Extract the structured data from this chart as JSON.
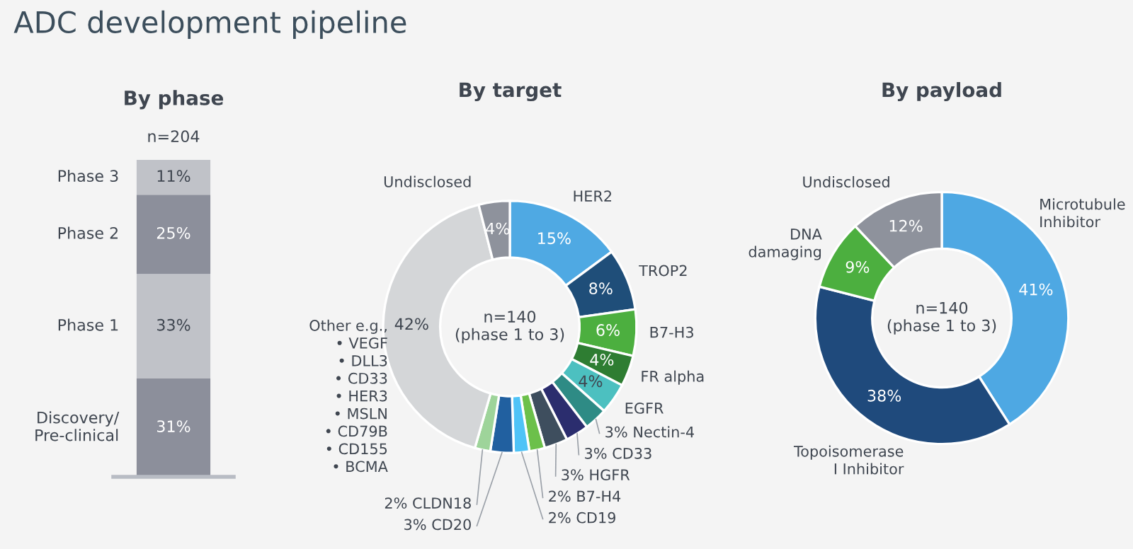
{
  "chart_data": [
    {
      "type": "bar",
      "stacked": true,
      "title": "ADC development pipeline",
      "subtitle": "By phase",
      "categories": [
        null
      ],
      "ylim": [
        0,
        100
      ],
      "tick_labels": false,
      "annotations": [
        "n=204"
      ],
      "series": [
        {
          "name": "Discovery/\nPre-clinical",
          "color": "#8c8f9b",
          "values": [
            31
          ],
          "value_labels": [
            "31%"
          ]
        },
        {
          "name": "Phase 1",
          "color": "#c0c2c8",
          "values": [
            33
          ],
          "value_labels": [
            "33%"
          ]
        },
        {
          "name": "Phase 2",
          "color": "#8c8f9b",
          "values": [
            25
          ],
          "value_labels": [
            "25%"
          ]
        },
        {
          "name": "Phase 3",
          "color": "#c0c2c8",
          "values": [
            11
          ],
          "value_labels": [
            "11%"
          ]
        }
      ]
    },
    {
      "type": "donut",
      "title": "By target",
      "annotations": [
        "n=140\n(phase 1 to 3)"
      ],
      "categories": [
        "HER2",
        "TROP2",
        "B7-H3",
        "FR alpha",
        "EGFR",
        "Nectin-4",
        "CD33",
        "HGFR",
        "B7-H4",
        "CD19",
        "CD20",
        "CLDN18",
        "Other e.g.,\n• VEGF\n• DLL3\n• CD33\n• HER3\n• MSLN\n• CD79B\n• CD155\n• BCMA",
        "Undisclosed"
      ],
      "values": [
        15,
        8,
        6,
        4,
        4,
        3,
        3,
        3,
        2,
        2,
        3,
        2,
        42,
        4
      ],
      "value_labels": [
        "15%",
        "8%",
        "6%",
        "4%",
        "4%",
        "3%",
        "3%",
        "3%",
        "2%",
        "2%",
        "3%",
        "2%",
        "42%",
        "4%"
      ],
      "colors": [
        "#4fa9e3",
        "#1f4e79",
        "#4caf3f",
        "#2e7d32",
        "#4cc0c0",
        "#2e8b85",
        "#2b2d6e",
        "#3e4e5e",
        "#6cc04a",
        "#4fc3f7",
        "#2160a0",
        "#9ed49a",
        "#d4d6d8",
        "#8e929c"
      ]
    },
    {
      "type": "donut",
      "title": "By payload",
      "annotations": [
        "n=140\n(phase 1 to 3)"
      ],
      "categories": [
        "Microtubule\nInhibitor",
        "Topoisomerase\nI Inhibitor",
        "DNA\ndamaging",
        "Undisclosed"
      ],
      "values": [
        41,
        38,
        9,
        12
      ],
      "value_labels": [
        "41%",
        "38%",
        "9%",
        "12%"
      ],
      "colors": [
        "#4ea8e3",
        "#1f4a7c",
        "#4caf3f",
        "#8e929c"
      ]
    }
  ]
}
